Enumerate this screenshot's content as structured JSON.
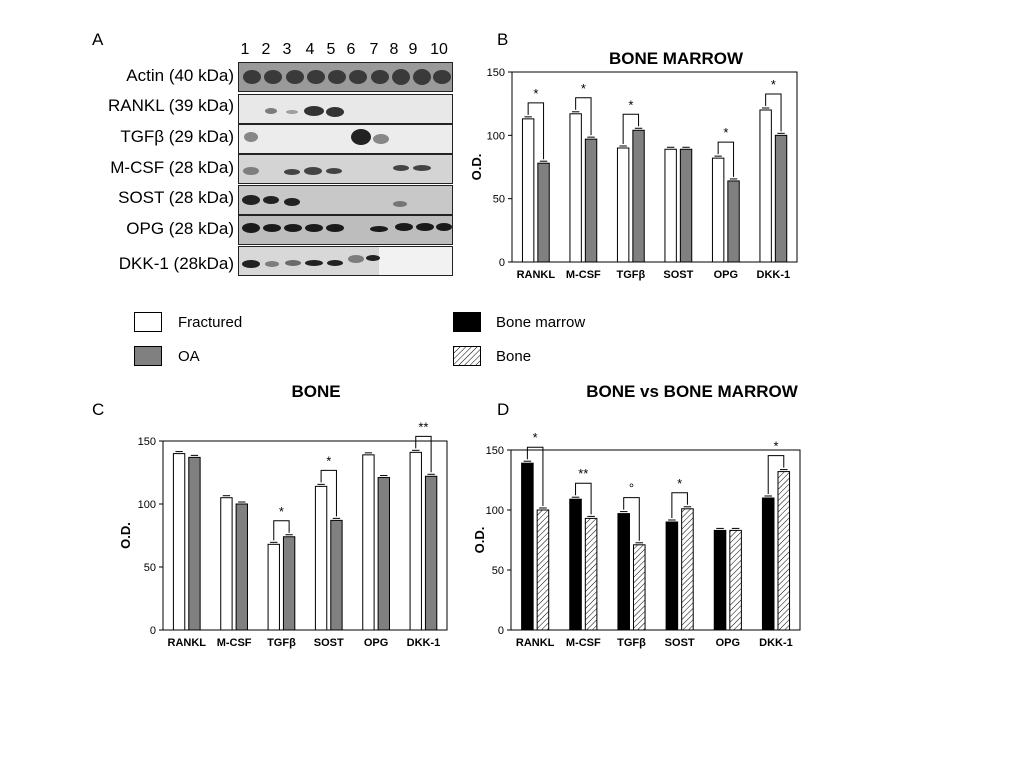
{
  "panel_a": {
    "letter": "A",
    "lanes": [
      "1",
      "2",
      "3",
      "4",
      "5",
      "6",
      "7",
      "8",
      "9",
      "10"
    ],
    "rows": [
      {
        "label": "Actin (40 kDa)"
      },
      {
        "label": "RANKL (39 kDa)"
      },
      {
        "label": "TGFβ (29 kDa)"
      },
      {
        "label": "M-CSF (28 kDa)"
      },
      {
        "label": "SOST (28 kDa)"
      },
      {
        "label": "OPG (28 kDa)"
      },
      {
        "label": "DKK-1 (28kDa)"
      }
    ]
  },
  "legend": {
    "fractured": "Fractured",
    "oa": "OA",
    "bone_marrow": "Bone marrow",
    "bone": "Bone",
    "colors": {
      "fractured": "#ffffff",
      "oa": "#808080",
      "bone_marrow": "#000000",
      "bone": "hatched"
    }
  },
  "chart_data": [
    {
      "panel": "B",
      "type": "bar",
      "title": "BONE MARROW",
      "ylabel": "O.D.",
      "ylim": [
        0,
        150
      ],
      "yticks": [
        0,
        50,
        100,
        150
      ],
      "categories": [
        "RANKL",
        "M-CSF",
        "TGFβ",
        "SOST",
        "OPG",
        "DKK-1"
      ],
      "series": [
        {
          "name": "Fractured",
          "values": [
            113,
            117,
            90,
            89,
            82,
            120
          ]
        },
        {
          "name": "OA",
          "values": [
            78,
            97,
            104,
            89,
            64,
            100
          ]
        }
      ],
      "significance": [
        "*",
        "*",
        "*",
        "",
        "*",
        "*"
      ]
    },
    {
      "panel": "C",
      "type": "bar",
      "title": "BONE",
      "ylabel": "O.D.",
      "ylim": [
        0,
        150
      ],
      "yticks": [
        0,
        50,
        100,
        150
      ],
      "categories": [
        "RANKL",
        "M-CSF",
        "TGFβ",
        "SOST",
        "OPG",
        "DKK-1"
      ],
      "series": [
        {
          "name": "Fractured",
          "values": [
            140,
            105,
            68,
            114,
            139,
            141
          ]
        },
        {
          "name": "OA",
          "values": [
            137,
            100,
            74,
            87,
            121,
            122
          ]
        }
      ],
      "significance": [
        "",
        "",
        "*",
        "*",
        "",
        "**"
      ]
    },
    {
      "panel": "D",
      "type": "bar",
      "title": "BONE vs BONE MARROW",
      "ylabel": "O.D.",
      "ylim": [
        0,
        150
      ],
      "yticks": [
        0,
        50,
        100,
        150
      ],
      "categories": [
        "RANKL",
        "M-CSF",
        "TGFβ",
        "SOST",
        "OPG",
        "DKK-1"
      ],
      "series": [
        {
          "name": "Bone marrow",
          "values": [
            139,
            109,
            97,
            90,
            83,
            110
          ]
        },
        {
          "name": "Bone",
          "values": [
            100,
            93,
            71,
            101,
            83,
            132
          ]
        }
      ],
      "significance": [
        "*",
        "**",
        "°",
        "*",
        "",
        "*"
      ]
    }
  ]
}
